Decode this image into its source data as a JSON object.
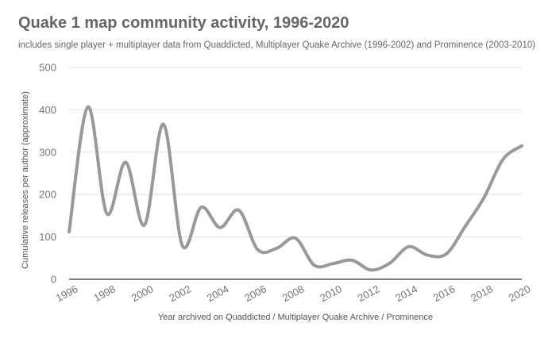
{
  "chart_data": {
    "type": "line",
    "title": "Quake 1 map community activity, 1996-2020",
    "subtitle": "includes single player + multiplayer data from Quaddicted, Multiplayer Quake Archive (1996-2002) and Prominence (2003-2010)",
    "xlabel": "Year archived on Quaddicted / Multiplayer Quake Archive / Prominence",
    "ylabel": "Cumulative releases per author (approximate)",
    "xlim": [
      1996,
      2020
    ],
    "ylim": [
      0,
      500
    ],
    "x_ticks": [
      "1996",
      "1998",
      "2000",
      "2002",
      "2004",
      "2006",
      "2008",
      "2010",
      "2012",
      "2014",
      "2016",
      "2018",
      "2020"
    ],
    "y_ticks": [
      "0",
      "100",
      "200",
      "300",
      "400",
      "500"
    ],
    "grid": true,
    "legend": "none",
    "series": [
      {
        "color": "#999999",
        "x": [
          1996,
          1997,
          1998,
          1999,
          2000,
          2001,
          2002,
          2003,
          2004,
          2005,
          2006,
          2007,
          2008,
          2009,
          2010,
          2011,
          2012,
          2013,
          2014,
          2015,
          2016,
          2017,
          2018,
          2019,
          2020
        ],
        "values": [
          112,
          407,
          155,
          276,
          128,
          366,
          80,
          170,
          122,
          163,
          70,
          73,
          97,
          33,
          37,
          45,
          22,
          38,
          77,
          57,
          60,
          125,
          193,
          283,
          315
        ]
      }
    ]
  }
}
